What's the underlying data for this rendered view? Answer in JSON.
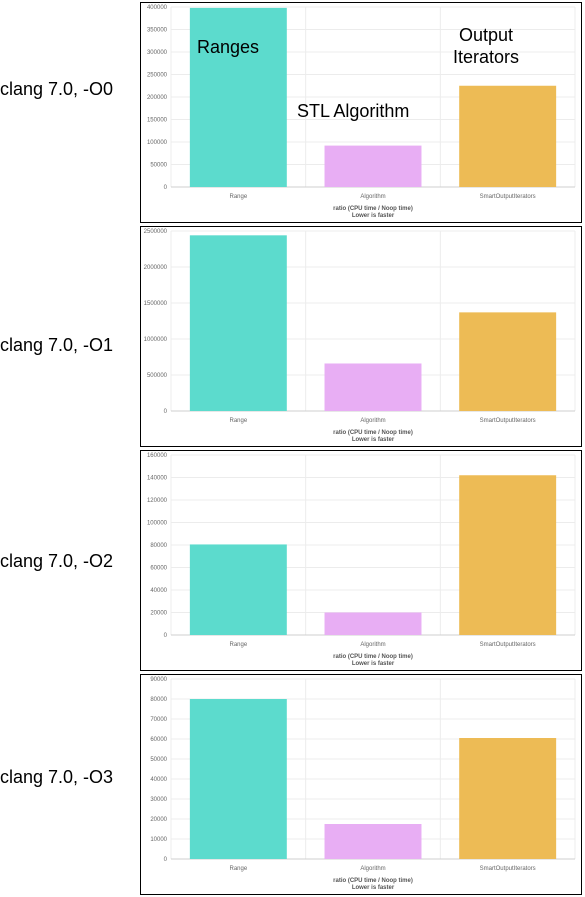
{
  "colors": {
    "Range": "#5cdbcd",
    "Algorithm": "#e8aef4",
    "SmartOutputIterators": "#edbb55"
  },
  "annotations": {
    "ranges": "Ranges",
    "stl": "STL Algorithm",
    "output": "Output Iterators"
  },
  "chart_data": [
    {
      "type": "bar",
      "row_label": "clang 7.0, -O0",
      "categories": [
        "Range",
        "Algorithm",
        "SmartOutputIterators"
      ],
      "values": [
        398000,
        92000,
        225000
      ],
      "ylim": [
        0,
        400000
      ],
      "yticks": [
        "0",
        "50000",
        "100000",
        "150000",
        "200000",
        "250000",
        "300000",
        "350000",
        "400000"
      ],
      "xlabel_line1": "ratio (CPU time / Noop time)",
      "xlabel_line2": "Lower is faster",
      "grid": true
    },
    {
      "type": "bar",
      "row_label": "clang 7.0, -O1",
      "categories": [
        "Range",
        "Algorithm",
        "SmartOutputIterators"
      ],
      "values": [
        2440000,
        660000,
        1370000
      ],
      "ylim": [
        0,
        2500000
      ],
      "yticks": [
        "0",
        "500000",
        "1000000",
        "1500000",
        "2000000",
        "2500000"
      ],
      "xlabel_line1": "ratio (CPU time / Noop time)",
      "xlabel_line2": "Lower is faster",
      "grid": true
    },
    {
      "type": "bar",
      "row_label": "clang 7.0, -O2",
      "categories": [
        "Range",
        "Algorithm",
        "SmartOutputIterators"
      ],
      "values": [
        80500,
        20000,
        142000
      ],
      "ylim": [
        0,
        160000
      ],
      "yticks": [
        "0",
        "20000",
        "40000",
        "60000",
        "80000",
        "100000",
        "120000",
        "140000",
        "160000"
      ],
      "xlabel_line1": "ratio (CPU time / Noop time)",
      "xlabel_line2": "Lower is faster",
      "grid": true
    },
    {
      "type": "bar",
      "row_label": "clang 7.0, -O3",
      "categories": [
        "Range",
        "Algorithm",
        "SmartOutputIterators"
      ],
      "values": [
        80000,
        17500,
        60500
      ],
      "ylim": [
        0,
        90000
      ],
      "yticks": [
        "0",
        "10000",
        "20000",
        "30000",
        "40000",
        "50000",
        "60000",
        "70000",
        "80000",
        "90000"
      ],
      "xlabel_line1": "ratio (CPU time / Noop time)",
      "xlabel_line2": "Lower is faster",
      "grid": true
    }
  ]
}
